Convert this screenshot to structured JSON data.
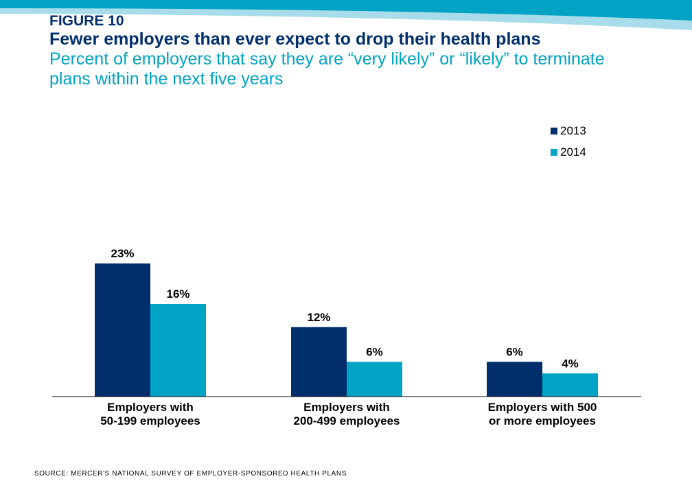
{
  "header": {
    "figure_label": "FIGURE 10",
    "title": "Fewer employers than ever expect to drop their health plans",
    "subtitle": "Percent of employers that say they are “very likely” or “likely” to terminate plans within the next five years"
  },
  "colors": {
    "band_dark": "#00a3c4",
    "band_light": "#a9dcea",
    "series_2013": "#002f6c",
    "series_2014": "#00a3c4"
  },
  "chart_data": {
    "type": "bar",
    "categories": [
      [
        "Employers with",
        "50-199 employees"
      ],
      [
        "Employers with",
        "200-499 employees"
      ],
      [
        "Employers with 500",
        "or more employees"
      ]
    ],
    "series": [
      {
        "name": "2013",
        "values": [
          23,
          12,
          6
        ],
        "labels": [
          "23%",
          "12%",
          "6%"
        ]
      },
      {
        "name": "2014",
        "values": [
          16,
          6,
          4
        ],
        "labels": [
          "16%",
          "6%",
          "4%"
        ]
      }
    ],
    "ylim": [
      0,
      23
    ],
    "grid": false,
    "legend": "top-right",
    "xlabel": "",
    "ylabel": ""
  },
  "footer": {
    "source": "SOURCE: MERCER'S NATIONAL SURVEY OF EMPLOYER-SPONSORED HEALTH PLANS"
  }
}
